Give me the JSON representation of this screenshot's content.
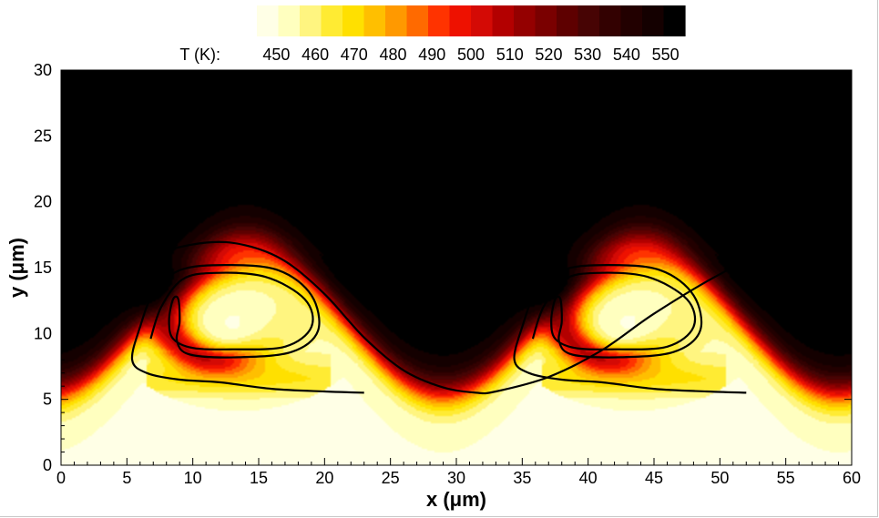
{
  "chart_data": {
    "type": "heatmap",
    "title": "",
    "xlabel": "x (μm)",
    "ylabel": "y (μm)",
    "xlim": [
      0,
      60
    ],
    "ylim": [
      0,
      30
    ],
    "xticks": [
      "0",
      "5",
      "10",
      "15",
      "20",
      "25",
      "30",
      "35",
      "40",
      "45",
      "50",
      "55",
      "60"
    ],
    "yticks": [
      "0",
      "5",
      "10",
      "15",
      "20",
      "25",
      "30"
    ],
    "colorbar": {
      "label": "T (K):",
      "range": [
        445,
        555
      ],
      "ticks": [
        "450",
        "460",
        "470",
        "480",
        "490",
        "500",
        "510",
        "520",
        "530",
        "540",
        "550"
      ],
      "colors": [
        "#ffffe6",
        "#ffffbf",
        "#fff580",
        "#ffeb33",
        "#ffe000",
        "#ffbf00",
        "#ff9900",
        "#ff6a00",
        "#ff3300",
        "#ee1100",
        "#d40a05",
        "#b30000",
        "#940000",
        "#7a0000",
        "#5e0000",
        "#470404",
        "#330101",
        "#220000",
        "#140000",
        "#000000"
      ]
    },
    "field": {
      "ambient_cold_K": 450,
      "ambient_hot_K": 553,
      "wavelength_um": 30,
      "interface_mean_y_um": 11.2,
      "interface_amplitude_um": 5.7,
      "vortex_centers": [
        {
          "x": 13.5,
          "y": 10.8
        },
        {
          "x": 43.5,
          "y": 10.8
        }
      ]
    },
    "contours": [
      {
        "name": "",
        "points": [
          [
            0,
            13.0
          ],
          [
            3,
            14.3
          ],
          [
            7,
            16.0
          ],
          [
            11,
            16.9
          ],
          [
            14,
            16.7
          ],
          [
            17,
            15.5
          ],
          [
            20,
            13.0
          ],
          [
            23,
            9.7
          ],
          [
            26,
            7.2
          ],
          [
            29,
            5.9
          ],
          [
            31.5,
            5.5
          ],
          [
            33,
            5.6
          ],
          [
            37,
            6.7
          ],
          [
            41,
            8.7
          ],
          [
            45,
            11.5
          ],
          [
            50,
            14.5
          ],
          [
            54,
            16.3
          ],
          [
            58,
            15.0
          ],
          [
            60,
            12.9
          ]
        ]
      },
      {
        "name": "",
        "points": [
          [
            6.8,
            9.6
          ],
          [
            7.6,
            12.0
          ],
          [
            9.2,
            14.1
          ],
          [
            11.6,
            14.6
          ],
          [
            15.5,
            14.3
          ],
          [
            18.5,
            12.6
          ],
          [
            19.0,
            10.5
          ],
          [
            17.0,
            9.0
          ],
          [
            13.0,
            8.8
          ],
          [
            10.0,
            8.9
          ],
          [
            8.5,
            9.6
          ],
          [
            8.2,
            11.0
          ],
          [
            8.5,
            12.6
          ],
          [
            8.9,
            12.6
          ],
          [
            9.0,
            10.9
          ],
          [
            8.8,
            9.4
          ],
          [
            9.8,
            8.4
          ],
          [
            13.5,
            8.2
          ],
          [
            17.5,
            8.6
          ],
          [
            19.5,
            10.2
          ],
          [
            19.0,
            12.9
          ],
          [
            16.5,
            14.8
          ],
          [
            12.5,
            15.2
          ],
          [
            9.0,
            14.8
          ],
          [
            7.0,
            13.0
          ],
          [
            6.0,
            10.5
          ],
          [
            5.4,
            8.0
          ],
          [
            6.5,
            7.0
          ],
          [
            9.0,
            6.5
          ],
          [
            12.0,
            6.3
          ],
          [
            16.0,
            5.8
          ],
          [
            20.0,
            5.6
          ],
          [
            23.0,
            5.5
          ]
        ]
      },
      {
        "name": "",
        "points": [
          [
            35.8,
            9.6
          ],
          [
            36.6,
            12.0
          ],
          [
            38.2,
            14.1
          ],
          [
            40.6,
            14.6
          ],
          [
            44.5,
            14.3
          ],
          [
            47.5,
            12.6
          ],
          [
            48.0,
            10.5
          ],
          [
            46.0,
            9.0
          ],
          [
            42.0,
            8.8
          ],
          [
            39.0,
            8.9
          ],
          [
            37.5,
            9.6
          ],
          [
            37.2,
            11.0
          ],
          [
            37.5,
            12.6
          ],
          [
            37.9,
            12.6
          ],
          [
            38.0,
            10.9
          ],
          [
            37.8,
            9.4
          ],
          [
            38.8,
            8.4
          ],
          [
            42.5,
            8.2
          ],
          [
            46.5,
            8.6
          ],
          [
            48.5,
            10.2
          ],
          [
            48.0,
            12.9
          ],
          [
            45.5,
            14.8
          ],
          [
            41.5,
            15.2
          ],
          [
            38.0,
            14.8
          ],
          [
            36.0,
            13.0
          ],
          [
            35.0,
            10.5
          ],
          [
            34.4,
            8.0
          ],
          [
            35.5,
            7.0
          ],
          [
            38.0,
            6.5
          ],
          [
            41.0,
            6.3
          ],
          [
            45.0,
            5.8
          ],
          [
            49.0,
            5.6
          ],
          [
            52.0,
            5.5
          ]
        ]
      }
    ]
  }
}
